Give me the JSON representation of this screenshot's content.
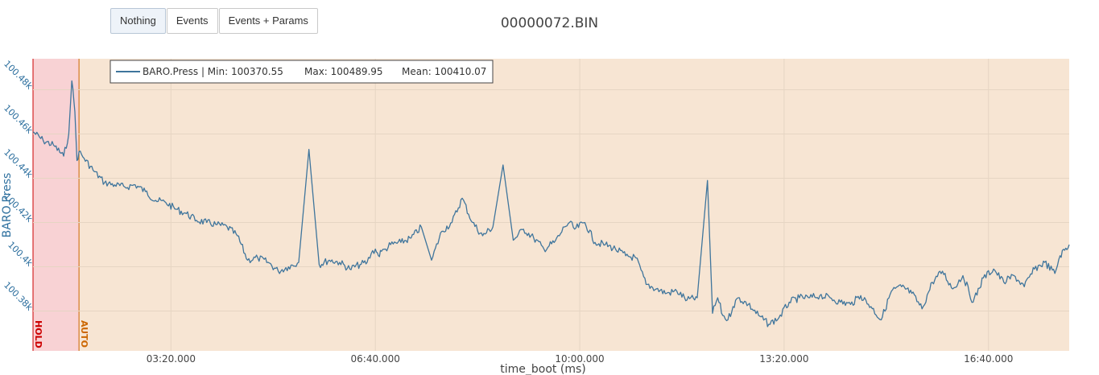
{
  "toolbar": {
    "buttons": [
      {
        "label": "Nothing",
        "active": true
      },
      {
        "label": "Events",
        "active": false
      },
      {
        "label": "Events + Params",
        "active": false
      }
    ]
  },
  "colors": {
    "series": "#3f759c",
    "background": "#f7e5d3",
    "hold_region": "#f8d2d4",
    "hold_text": "#cc0000",
    "auto_text": "#cc6600"
  },
  "chart_data": {
    "type": "line",
    "title": "00000072.BIN",
    "xlabel": "time_boot (ms)",
    "ylabel": "BARO.Press",
    "x_ticks": [
      {
        "value": 200000,
        "label": "03:20.000"
      },
      {
        "value": 400000,
        "label": "06:40.000"
      },
      {
        "value": 600000,
        "label": "10:00.000"
      },
      {
        "value": 800000,
        "label": "13:20.000"
      },
      {
        "value": 1000000,
        "label": "16:40.000"
      }
    ],
    "y_ticks": [
      {
        "value": 100380,
        "label": "100.38k"
      },
      {
        "value": 100400,
        "label": "100.4k"
      },
      {
        "value": 100420,
        "label": "100.42k"
      },
      {
        "value": 100440,
        "label": "100.44k"
      },
      {
        "value": 100460,
        "label": "100.46k"
      },
      {
        "value": 100480,
        "label": "100.48k"
      }
    ],
    "xlim": [
      65000,
      1079000
    ],
    "ylim": [
      100362,
      100494
    ],
    "grid": true,
    "legend": {
      "placement": "top-left",
      "series_name": "BARO.Press",
      "min_label": "Min: 100370.55",
      "max_label": "Max: 100489.95",
      "mean_label": "Mean: 100410.07"
    },
    "flight_modes": [
      {
        "name": "HOLD",
        "start": 65000,
        "end": 110000
      },
      {
        "name": "AUTO",
        "start": 110000,
        "end": 1079000
      }
    ],
    "series": [
      {
        "name": "BARO.Press",
        "x": [
          65000,
          75000,
          85000,
          95000,
          100000,
          103000,
          106000,
          108000,
          110000,
          115000,
          125000,
          135000,
          145000,
          155000,
          165000,
          175000,
          185000,
          195000,
          205000,
          215000,
          225000,
          235000,
          245000,
          255000,
          265000,
          275000,
          285000,
          295000,
          305000,
          315000,
          325000,
          335000,
          345000,
          355000,
          365000,
          375000,
          385000,
          392000,
          396000,
          400000,
          403000,
          406000,
          410000,
          415000,
          425000,
          435000,
          445000,
          455000,
          465000,
          475000,
          485000,
          495000,
          505000,
          515000,
          525000,
          535000,
          545000,
          555000,
          565000,
          575000,
          580000,
          585000,
          590000,
          595000,
          605000,
          615000,
          625000,
          635000,
          645000,
          655000,
          665000,
          675000,
          685000,
          695000,
          705000,
          715000,
          725000,
          730000,
          735000,
          740000,
          745000,
          750000,
          755000,
          765000,
          775000,
          785000,
          795000,
          805000,
          815000,
          825000,
          835000,
          845000,
          855000,
          865000,
          875000,
          885000,
          895000,
          905000,
          915000,
          925000,
          935000,
          945000,
          955000,
          965000,
          975000,
          985000,
          995000,
          1005000,
          1015000,
          1025000,
          1035000,
          1045000,
          1055000,
          1065000,
          1070000,
          1079000
        ],
        "y": [
          100461,
          100457,
          100455,
          100450,
          100460,
          100484,
          100470,
          100448,
          100452,
          100449,
          100443,
          100438,
          100437,
          100436,
          100437,
          100434,
          100430,
          100429,
          100426,
          100424,
          100421,
          100420,
          100419,
          100418,
          100414,
          100403,
          100404,
          100402,
          100398,
          100400,
          100402,
          100453,
          100401,
          100403,
          100402,
          100399,
          100401,
          100402,
          100406,
          100408,
          100405,
          100407,
          100408,
          100410,
          100411,
          100413,
          100418,
          100403,
          100416,
          100420,
          100431,
          100420,
          100414,
          100418,
          100446,
          100412,
          100417,
          100413,
          100408,
          100411,
          100414,
          100418,
          100420,
          100417,
          100420,
          100411,
          100410,
          100408,
          100405,
          100404,
          100392,
          100390,
          100388,
          100389,
          100385,
          100386,
          100439,
          100379,
          100386,
          100378,
          100376,
          100382,
          100386,
          100383,
          100378,
          100374,
          100377,
          100384,
          100386,
          100386,
          100387,
          100386,
          100384,
          100383,
          100387,
          100382,
          100376,
          100389,
          100391,
          100388,
          100381,
          100393,
          100398,
          100390,
          100396,
          100384,
          100395,
          100399,
          100393,
          100396,
          100391,
          100399,
          100402,
          100397,
          100405,
          100410
        ]
      }
    ]
  }
}
